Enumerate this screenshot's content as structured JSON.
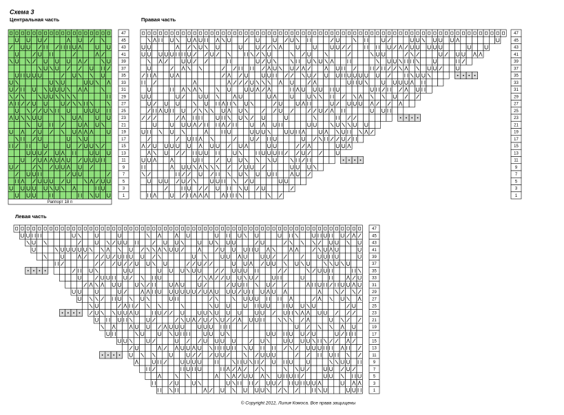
{
  "header": {
    "title": "Схема 3"
  },
  "central": {
    "title": "Центральная часть",
    "repeat_label": "Раппорт 18 п"
  },
  "right": {
    "title": "Правая часть"
  },
  "left": {
    "title": "Левая часть"
  },
  "row_numbers": [
    47,
    45,
    43,
    41,
    39,
    37,
    35,
    33,
    31,
    29,
    27,
    25,
    23,
    21,
    19,
    17,
    15,
    13,
    11,
    9,
    7,
    5,
    3,
    1
  ],
  "footer": {
    "copyright": "© Copyright 2012, Лилия Комоса. Все права защищены"
  }
}
